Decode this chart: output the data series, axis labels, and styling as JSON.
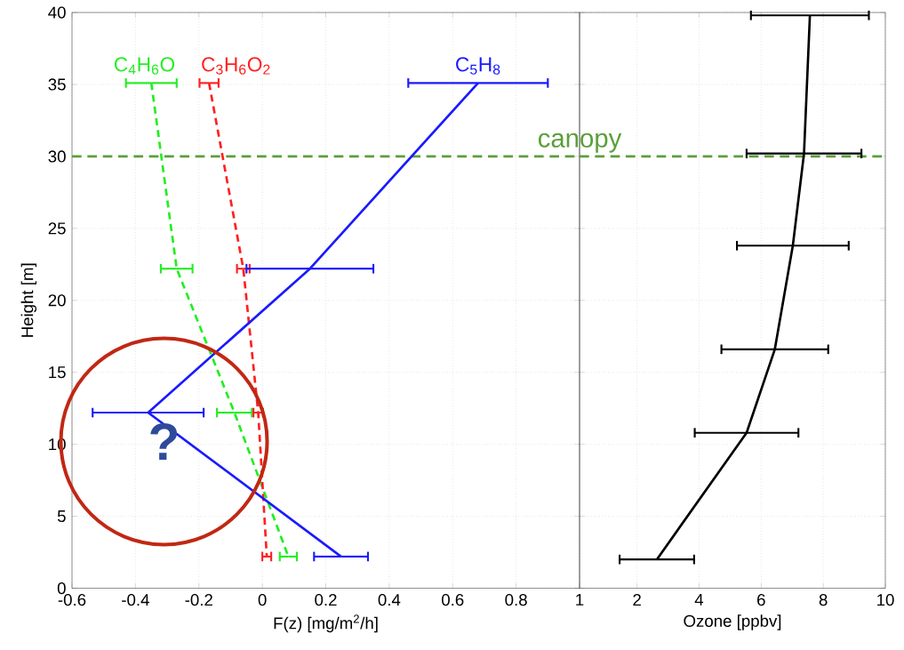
{
  "chart_data": [
    {
      "type": "line",
      "xlabel": "F(z) [mg/m$^{2}$/h]",
      "ylabel": "Height [m]",
      "xlim": [
        -0.6,
        1
      ],
      "xticks": [
        -0.6,
        -0.4,
        -0.2,
        0,
        0.2,
        0.4,
        0.6,
        0.8,
        1
      ],
      "ylim": [
        0,
        40
      ],
      "yticks": [
        0,
        5,
        10,
        15,
        20,
        25,
        30,
        35,
        40
      ],
      "grid": true,
      "marker": "none",
      "series": [
        {
          "name": "C$_{4}$H$_{6}$O",
          "color": "#22ee22",
          "line_style": "dashed",
          "x": [
            -0.35,
            -0.27,
            -0.088,
            0.082
          ],
          "values": [
            35.1,
            22.2,
            12.2,
            2.2
          ],
          "xerrors": [
            0.08,
            0.05,
            0.055,
            0.027
          ]
        },
        {
          "name": "C$_{3}$H$_{6}$O$_{2}$",
          "color": "#ff2020",
          "line_style": "dashed",
          "x": [
            -0.168,
            -0.06,
            -0.013,
            0.014
          ],
          "values": [
            35.1,
            22.2,
            12.2,
            2.2
          ],
          "xerrors": [
            0.03,
            0.02,
            0.015,
            0.014
          ]
        },
        {
          "name": "C$_{5}$H$_{8}$",
          "color": "#1a1aff",
          "line_style": "solid",
          "x": [
            0.68,
            0.15,
            -0.36,
            0.248
          ],
          "values": [
            35.1,
            22.2,
            12.2,
            2.2
          ],
          "xerrors": [
            0.22,
            0.2,
            0.175,
            0.085
          ]
        }
      ],
      "ref_lines": [
        {
          "axis": "y",
          "value": 30,
          "label": "canopy",
          "color": "#5b9f3b",
          "line_style": "dashed"
        }
      ],
      "annotations": [
        "?"
      ]
    },
    {
      "type": "line",
      "xlabel": "Ozone [ppbv]",
      "xlim": [
        0.15,
        10
      ],
      "xticks": [
        2,
        4,
        6,
        8,
        10
      ],
      "ylim": [
        0,
        40
      ],
      "yticks": [
        0,
        5,
        10,
        15,
        20,
        25,
        30,
        35,
        40
      ],
      "grid": true,
      "marker": "none",
      "tick_labels": "x",
      "series": [
        {
          "color": "#000000",
          "line_style": "solid",
          "x": [
            7.57,
            7.38,
            7.02,
            6.44,
            5.53,
            2.64
          ],
          "values": [
            39.8,
            30.2,
            23.8,
            16.6,
            10.8,
            2.0
          ],
          "xerrors": [
            1.9,
            1.85,
            1.8,
            1.72,
            1.67,
            1.2
          ]
        }
      ],
      "ref_lines": [
        {
          "axis": "y",
          "value": 30,
          "color": "#5b9f3b",
          "line_style": "dashed"
        }
      ]
    }
  ]
}
